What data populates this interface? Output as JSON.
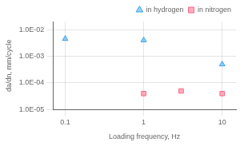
{
  "chart_data": {
    "type": "scatter",
    "xlabel": "Loading frequency, Hz",
    "ylabel": "da/dn, mm/cycle",
    "series": [
      {
        "name": "in hydrogen",
        "marker": "triangle",
        "x": [
          0.1,
          1,
          10
        ],
        "values": [
          0.0045,
          0.004,
          0.0005
        ]
      },
      {
        "name": "in nitrogen",
        "marker": "square",
        "x": [
          1,
          3,
          10
        ],
        "values": [
          4e-05,
          5e-05,
          4e-05
        ]
      }
    ],
    "log": true,
    "xlim": [
      0.07,
      15
    ],
    "ylim": [
      1e-05,
      0.02
    ],
    "xticks": [
      0.1,
      1,
      10
    ],
    "yticks": [
      {
        "value": 1e-05,
        "label": "1.0E-05"
      },
      {
        "value": 0.0001,
        "label": "1.0E-04"
      },
      {
        "value": 0.001,
        "label": "1.0E-03"
      },
      {
        "value": 0.01,
        "label": "1.0E-02"
      }
    ],
    "grid": true,
    "legend": "upper right"
  }
}
